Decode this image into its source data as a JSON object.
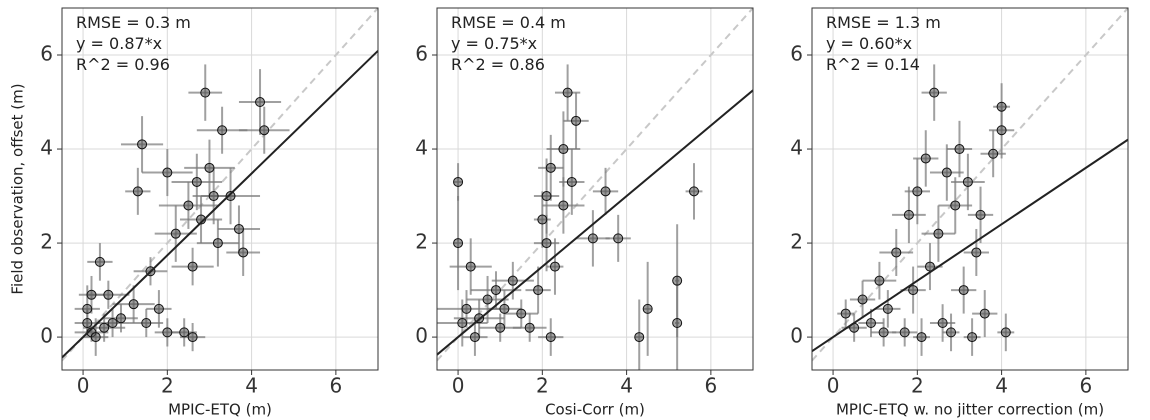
{
  "chart_data": [
    {
      "type": "scatter",
      "xlabel": "MPIC-ETQ (m)",
      "ylabel": "Field observation, offset (m)",
      "annotations": [
        "RMSE = 0.3 m",
        "y = 0.87*x",
        "R^2 = 0.96"
      ],
      "fit_slope": 0.87,
      "xlim": [
        -0.5,
        7
      ],
      "ylim": [
        -0.7,
        7
      ],
      "xticks": [
        0,
        2,
        4,
        6
      ],
      "yticks": [
        0,
        2,
        4,
        6
      ],
      "grid": true,
      "marker_color": "#555555",
      "error_color": "#777777",
      "fit_color": "#222222",
      "identity_color": "#c8c8c8",
      "series": [
        {
          "x": [
            0.1,
            0.2,
            0.3,
            0.5,
            0.1,
            0.7,
            0.4,
            0.6,
            0.9,
            1.2,
            1.5,
            1.8,
            2.0,
            1.6,
            1.3,
            1.4,
            2.0,
            2.2,
            2.5,
            2.7,
            2.8,
            3.0,
            3.2,
            2.9,
            3.3,
            3.5,
            3.7,
            4.2,
            4.3,
            3.8,
            2.6,
            3.1,
            2.4,
            2.6,
            0.2
          ],
          "y": [
            0.3,
            0.1,
            0.0,
            0.2,
            0.6,
            0.3,
            1.6,
            0.9,
            0.4,
            0.7,
            0.3,
            0.6,
            0.1,
            1.4,
            3.1,
            4.1,
            3.5,
            2.2,
            2.8,
            3.3,
            2.5,
            3.6,
            2.0,
            5.2,
            4.4,
            3.0,
            2.3,
            5.0,
            4.4,
            1.8,
            1.5,
            3.0,
            0.1,
            0.0,
            0.9
          ],
          "xerr": [
            0.3,
            0.4,
            0.3,
            0.5,
            0.3,
            0.4,
            0.3,
            0.5,
            0.4,
            0.5,
            0.4,
            0.3,
            0.3,
            0.4,
            0.3,
            0.5,
            0.6,
            0.5,
            0.7,
            0.6,
            0.5,
            0.6,
            0.5,
            0.4,
            0.6,
            0.7,
            0.5,
            0.5,
            0.6,
            0.4,
            0.5,
            0.5,
            0.3,
            0.3,
            0.3
          ],
          "yerr": [
            0.3,
            0.2,
            0.4,
            0.3,
            0.5,
            0.3,
            0.4,
            0.3,
            0.3,
            0.4,
            0.3,
            0.4,
            0.3,
            0.3,
            0.5,
            0.6,
            0.5,
            0.6,
            0.5,
            0.6,
            0.5,
            0.6,
            0.5,
            0.6,
            0.5,
            0.6,
            0.5,
            0.7,
            0.5,
            0.5,
            0.4,
            0.6,
            0.3,
            0.3,
            0.4
          ]
        }
      ]
    },
    {
      "type": "scatter",
      "xlabel": "Cosi-Corr (m)",
      "annotations": [
        "RMSE = 0.4 m",
        "y = 0.75*x",
        "R^2 = 0.86"
      ],
      "fit_slope": 0.75,
      "xlim": [
        -0.5,
        7
      ],
      "ylim": [
        -0.7,
        7
      ],
      "xticks": [
        0,
        2,
        4,
        6
      ],
      "yticks": [
        0,
        2,
        4,
        6
      ],
      "grid": true,
      "marker_color": "#555555",
      "error_color": "#777777",
      "fit_color": "#222222",
      "identity_color": "#c8c8c8",
      "series": [
        {
          "x": [
            0,
            0,
            0.1,
            0.2,
            0.3,
            0.5,
            0.7,
            0.9,
            1.1,
            1.3,
            1.5,
            1.7,
            1.9,
            2.0,
            2.1,
            2.2,
            2.1,
            2.3,
            2.5,
            2.6,
            2.7,
            2.5,
            2.8,
            3.2,
            3.5,
            3.8,
            4.3,
            4.5,
            5.2,
            5.2,
            5.6,
            2.2,
            1.0,
            0.4
          ],
          "y": [
            3.3,
            2.0,
            0.3,
            0.6,
            1.5,
            0.4,
            0.8,
            1.0,
            0.6,
            1.2,
            0.5,
            0.2,
            1.0,
            2.5,
            3.0,
            3.6,
            2.0,
            1.5,
            4.0,
            5.2,
            3.3,
            2.8,
            4.6,
            2.1,
            3.1,
            2.1,
            0.0,
            0.6,
            1.2,
            0.3,
            3.1,
            0.0,
            0.2,
            0.0
          ],
          "xerr": [
            0.1,
            0.1,
            0.6,
            0.8,
            0.5,
            0.6,
            0.5,
            0.6,
            0.4,
            0.5,
            0.4,
            0.4,
            0.3,
            0.2,
            0.3,
            0.3,
            0.3,
            0.2,
            0.4,
            0.3,
            0.3,
            0.5,
            0.3,
            0.4,
            0.3,
            0.3,
            0.1,
            0.1,
            0.05,
            0.05,
            0.2,
            0.3,
            0.5,
            0.3
          ],
          "yerr": [
            0.4,
            1.0,
            0.5,
            0.4,
            0.6,
            0.4,
            0.5,
            0.4,
            0.4,
            0.4,
            0.3,
            0.3,
            0.5,
            0.6,
            0.8,
            0.7,
            0.6,
            0.6,
            0.8,
            0.6,
            0.7,
            0.6,
            0.6,
            0.6,
            0.5,
            0.5,
            0.8,
            1.0,
            1.2,
            1.0,
            0.6,
            0.4,
            0.3,
            0.4
          ]
        }
      ]
    },
    {
      "type": "scatter",
      "xlabel": "MPIC-ETQ w. no jitter correction (m)",
      "annotations": [
        "RMSE = 1.3 m",
        "y = 0.60*x",
        "R^2 = 0.14"
      ],
      "fit_slope": 0.6,
      "xlim": [
        -0.5,
        7
      ],
      "ylim": [
        -0.7,
        7
      ],
      "xticks": [
        0,
        2,
        4,
        6
      ],
      "yticks": [
        0,
        2,
        4,
        6
      ],
      "grid": true,
      "marker_color": "#555555",
      "error_color": "#777777",
      "fit_color": "#222222",
      "identity_color": "#c8c8c8",
      "series": [
        {
          "x": [
            0.3,
            0.5,
            0.7,
            0.9,
            1.1,
            1.3,
            1.5,
            1.7,
            1.8,
            1.9,
            2.0,
            2.1,
            2.2,
            2.3,
            2.4,
            2.5,
            2.6,
            2.7,
            2.9,
            3.0,
            3.1,
            3.2,
            3.3,
            3.5,
            3.6,
            3.8,
            4.0,
            4.0,
            4.1,
            3.4,
            2.8,
            1.2
          ],
          "y": [
            0.5,
            0.2,
            0.8,
            0.3,
            1.2,
            0.6,
            1.8,
            0.1,
            2.6,
            1.0,
            3.1,
            0.0,
            3.8,
            1.5,
            5.2,
            2.2,
            0.3,
            3.5,
            2.8,
            4.0,
            1.0,
            3.3,
            0.0,
            2.6,
            0.5,
            3.9,
            4.9,
            4.4,
            0.1,
            1.8,
            0.1,
            0.1
          ],
          "xerr": [
            0.2,
            0.3,
            0.3,
            0.3,
            0.4,
            0.3,
            0.4,
            0.3,
            0.4,
            0.3,
            0.3,
            0.2,
            0.3,
            0.3,
            0.3,
            0.4,
            0.3,
            0.4,
            0.4,
            0.3,
            0.3,
            0.4,
            0.2,
            0.3,
            0.3,
            0.3,
            0.2,
            0.3,
            0.2,
            0.3,
            0.2,
            0.3
          ],
          "yerr": [
            0.3,
            0.3,
            0.4,
            0.3,
            0.4,
            0.4,
            0.5,
            0.3,
            0.6,
            0.5,
            0.7,
            0.4,
            0.6,
            0.5,
            0.6,
            0.6,
            0.4,
            0.6,
            0.6,
            0.6,
            0.5,
            0.6,
            0.4,
            0.6,
            0.5,
            0.5,
            0.5,
            0.6,
            0.4,
            0.5,
            0.4,
            0.3
          ]
        }
      ]
    }
  ]
}
